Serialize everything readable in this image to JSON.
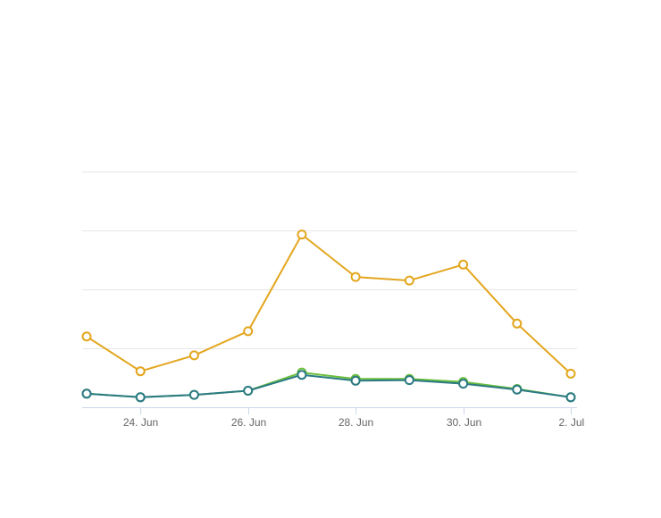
{
  "chart_data": {
    "type": "line",
    "x": [
      "2023-06-23",
      "2023-06-24",
      "2023-06-25",
      "2023-06-26",
      "2023-06-27",
      "2023-06-28",
      "2023-06-29",
      "2023-06-30",
      "2023-07-01",
      "2023-07-02"
    ],
    "x_tick_labels": [
      "24. Jun",
      "26. Jun",
      "28. Jun",
      "30. Jun",
      "2. Jul"
    ],
    "x_tick_dates": [
      "2023-06-24",
      "2023-06-26",
      "2023-06-28",
      "2023-06-30",
      "2023-07-02"
    ],
    "ylim": [
      0,
      4
    ],
    "y_gridlines": [
      0,
      1,
      2,
      3,
      4
    ],
    "y_tick_labels_visible": false,
    "grid": true,
    "legend": "none",
    "series": [
      {
        "color": "#e3a61e",
        "values": [
          1.2,
          0.61,
          0.88,
          1.29,
          2.93,
          2.21,
          2.15,
          2.42,
          1.42,
          0.57
        ]
      },
      {
        "color": "#6abf3c",
        "values": [
          0.23,
          0.17,
          0.21,
          0.28,
          0.59,
          0.48,
          0.48,
          0.43,
          0.31,
          0.17
        ]
      },
      {
        "color": "#2b7a84",
        "values": [
          0.23,
          0.17,
          0.21,
          0.28,
          0.55,
          0.45,
          0.46,
          0.4,
          0.3,
          0.17
        ]
      }
    ]
  }
}
